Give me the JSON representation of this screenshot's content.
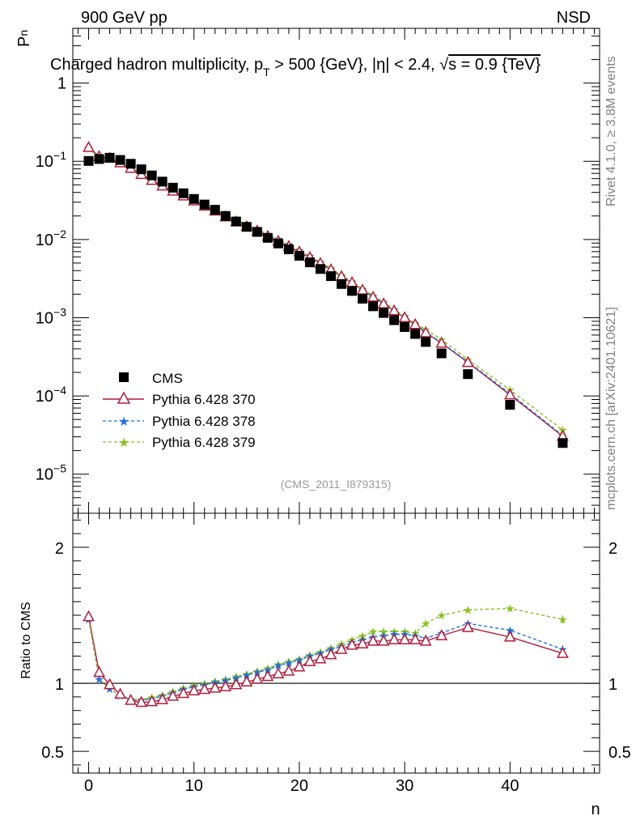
{
  "chart_data": {
    "type": "scatter",
    "title": "Charged hadron multiplicity, p_T > 500 {GeV}, |η| < 2.4, √s = 0.9 {TeV}",
    "title_parts": {
      "prefix": "Charged hadron multiplicity, p",
      "sub": "T",
      "middle": " > 500 {GeV}, |η| < 2.4, ",
      "sqrt": "√",
      "suffix": "s = 0.9 {TeV}"
    },
    "header_left": "900 GeV pp",
    "header_right": "NSD",
    "ylabel_main": "P",
    "ylabel_main_sub": "n",
    "ylabel_ratio": "Ratio to CMS",
    "xlabel": "n",
    "side_label_top": "Rivet 4.1.0, ≥ 3.8M events",
    "side_label_bottom": "mcplots.cern.ch [arXiv:2401.10621]",
    "analysis_tag": "(CMS_2011_I879315)",
    "xlim": [
      -1.5,
      48.5
    ],
    "ylim_main_log10": [
      -5.5,
      0.7
    ],
    "ylim_ratio": [
      0.34,
      2.25
    ],
    "x_ticks": [
      0,
      10,
      20,
      30,
      40
    ],
    "main_y_ticks": [
      {
        "exp": 0,
        "label": "1",
        "base": "",
        "sup": ""
      },
      {
        "exp": -1,
        "label": "",
        "base": "10",
        "sup": "−1"
      },
      {
        "exp": -2,
        "label": "",
        "base": "10",
        "sup": "−2"
      },
      {
        "exp": -3,
        "label": "",
        "base": "10",
        "sup": "−3"
      },
      {
        "exp": -4,
        "label": "",
        "base": "10",
        "sup": "−4"
      },
      {
        "exp": -5,
        "label": "",
        "base": "10",
        "sup": "−5"
      }
    ],
    "ratio_y_ticks": [
      {
        "value": 0.5,
        "label": "0.5"
      },
      {
        "value": 1,
        "label": "1"
      },
      {
        "value": 2,
        "label": "2"
      }
    ],
    "legend": [
      {
        "key": "cms",
        "label": "CMS"
      },
      {
        "key": "p370",
        "label": "Pythia 6.428 370"
      },
      {
        "key": "p378",
        "label": "Pythia 6.428 378"
      },
      {
        "key": "p379",
        "label": "Pythia 6.428 379"
      }
    ],
    "x": [
      0,
      1,
      2,
      3,
      4,
      5,
      6,
      7,
      8,
      9,
      10,
      11,
      12,
      13,
      14,
      15,
      16,
      17,
      18,
      19,
      20,
      21,
      22,
      23,
      24,
      25,
      26,
      27,
      28,
      29,
      30,
      31,
      32,
      33.5,
      36,
      40,
      45
    ],
    "cms": [
      0.101,
      0.107,
      0.111,
      0.104,
      0.093,
      0.079,
      0.066,
      0.055,
      0.046,
      0.039,
      0.033,
      0.028,
      0.024,
      0.02,
      0.017,
      0.0145,
      0.0125,
      0.0105,
      0.0089,
      0.0075,
      0.0062,
      0.0051,
      0.0042,
      0.0034,
      0.0027,
      0.0022,
      0.00175,
      0.0014,
      0.00115,
      0.00093,
      0.00076,
      0.00062,
      0.00049,
      0.00035,
      0.00019,
      7.7e-05,
      2.5e-05
    ],
    "series": [
      {
        "name": "Pythia 6.428 370",
        "key": "p370",
        "color": "#b01c3c",
        "dash": "",
        "marker": "triangle",
        "ratio": [
          1.49,
          1.08,
          0.99,
          0.92,
          0.875,
          0.86,
          0.865,
          0.88,
          0.905,
          0.925,
          0.945,
          0.955,
          0.965,
          0.975,
          0.99,
          1.01,
          1.03,
          1.05,
          1.07,
          1.09,
          1.12,
          1.16,
          1.18,
          1.21,
          1.25,
          1.28,
          1.29,
          1.31,
          1.31,
          1.32,
          1.32,
          1.32,
          1.31,
          1.35,
          1.41,
          1.34,
          1.22
        ]
      },
      {
        "name": "Pythia 6.428 378",
        "key": "p378",
        "color": "#1f6fdf",
        "dash": "4,3",
        "marker": "star",
        "ratio": [
          1.47,
          1.03,
          0.96,
          0.91,
          0.88,
          0.875,
          0.885,
          0.905,
          0.93,
          0.955,
          0.975,
          0.99,
          1.005,
          1.02,
          1.04,
          1.06,
          1.08,
          1.1,
          1.13,
          1.15,
          1.17,
          1.2,
          1.22,
          1.25,
          1.27,
          1.3,
          1.32,
          1.34,
          1.35,
          1.36,
          1.36,
          1.35,
          1.33,
          1.37,
          1.44,
          1.39,
          1.25
        ]
      },
      {
        "name": "Pythia 6.428 379",
        "key": "p379",
        "color": "#88c020",
        "dash": "4,3",
        "marker": "star",
        "ratio": [
          1.47,
          1.03,
          0.96,
          0.91,
          0.88,
          0.88,
          0.895,
          0.915,
          0.94,
          0.965,
          0.985,
          1.0,
          1.015,
          1.03,
          1.05,
          1.07,
          1.09,
          1.11,
          1.14,
          1.16,
          1.18,
          1.21,
          1.23,
          1.26,
          1.29,
          1.32,
          1.35,
          1.38,
          1.38,
          1.38,
          1.38,
          1.37,
          1.44,
          1.5,
          1.54,
          1.55,
          1.47
        ]
      }
    ],
    "ratio_errors": {
      "x": [
        32,
        33.5,
        36,
        40,
        45
      ],
      "values": [
        0.01,
        0.012,
        0.015,
        0.02,
        0.03
      ]
    }
  }
}
